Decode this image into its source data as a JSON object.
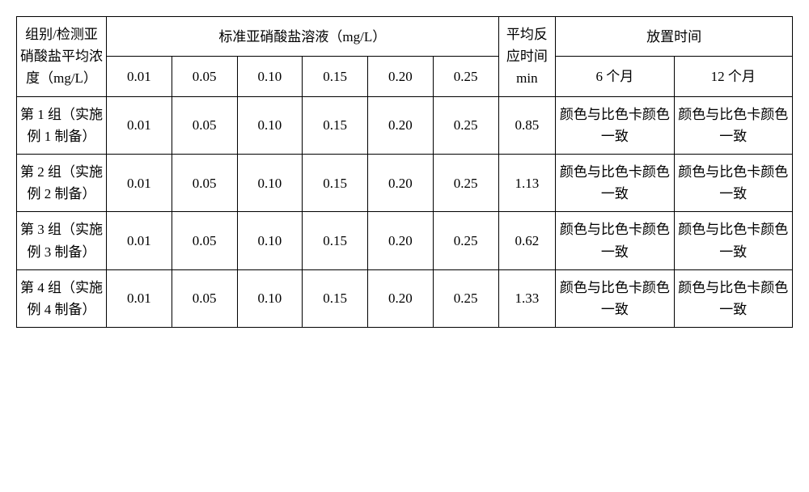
{
  "header": {
    "group_label": "组别/检测亚硝酸盐平均浓度（mg/L）",
    "standard_solution": "标准亚硝酸盐溶液（mg/L）",
    "avg_reaction_time": "平均反应时间min",
    "storage_time": "放置时间",
    "std_values": [
      "0.01",
      "0.05",
      "0.10",
      "0.15",
      "0.20",
      "0.25"
    ],
    "storage_periods": [
      "6 个月",
      "12 个月"
    ]
  },
  "rows": [
    {
      "group": "第 1 组（实施例 1 制备）",
      "values": [
        "0.01",
        "0.05",
        "0.10",
        "0.15",
        "0.20",
        "0.25"
      ],
      "avg_time": "0.85",
      "storage6": "颜色与比色卡颜色一致",
      "storage12": "颜色与比色卡颜色一致"
    },
    {
      "group": "第 2 组（实施例 2 制备）",
      "values": [
        "0.01",
        "0.05",
        "0.10",
        "0.15",
        "0.20",
        "0.25"
      ],
      "avg_time": "1.13",
      "storage6": "颜色与比色卡颜色一致",
      "storage12": "颜色与比色卡颜色一致"
    },
    {
      "group": "第 3 组（实施例 3 制备）",
      "values": [
        "0.01",
        "0.05",
        "0.10",
        "0.15",
        "0.20",
        "0.25"
      ],
      "avg_time": "0.62",
      "storage6": "颜色与比色卡颜色一致",
      "storage12": "颜色与比色卡颜色一致"
    },
    {
      "group": "第 4 组（实施例 4 制备）",
      "values": [
        "0.01",
        "0.05",
        "0.10",
        "0.15",
        "0.20",
        "0.25"
      ],
      "avg_time": "1.33",
      "storage6": "颜色与比色卡颜色一致",
      "storage12": "颜色与比色卡颜色一致"
    }
  ]
}
